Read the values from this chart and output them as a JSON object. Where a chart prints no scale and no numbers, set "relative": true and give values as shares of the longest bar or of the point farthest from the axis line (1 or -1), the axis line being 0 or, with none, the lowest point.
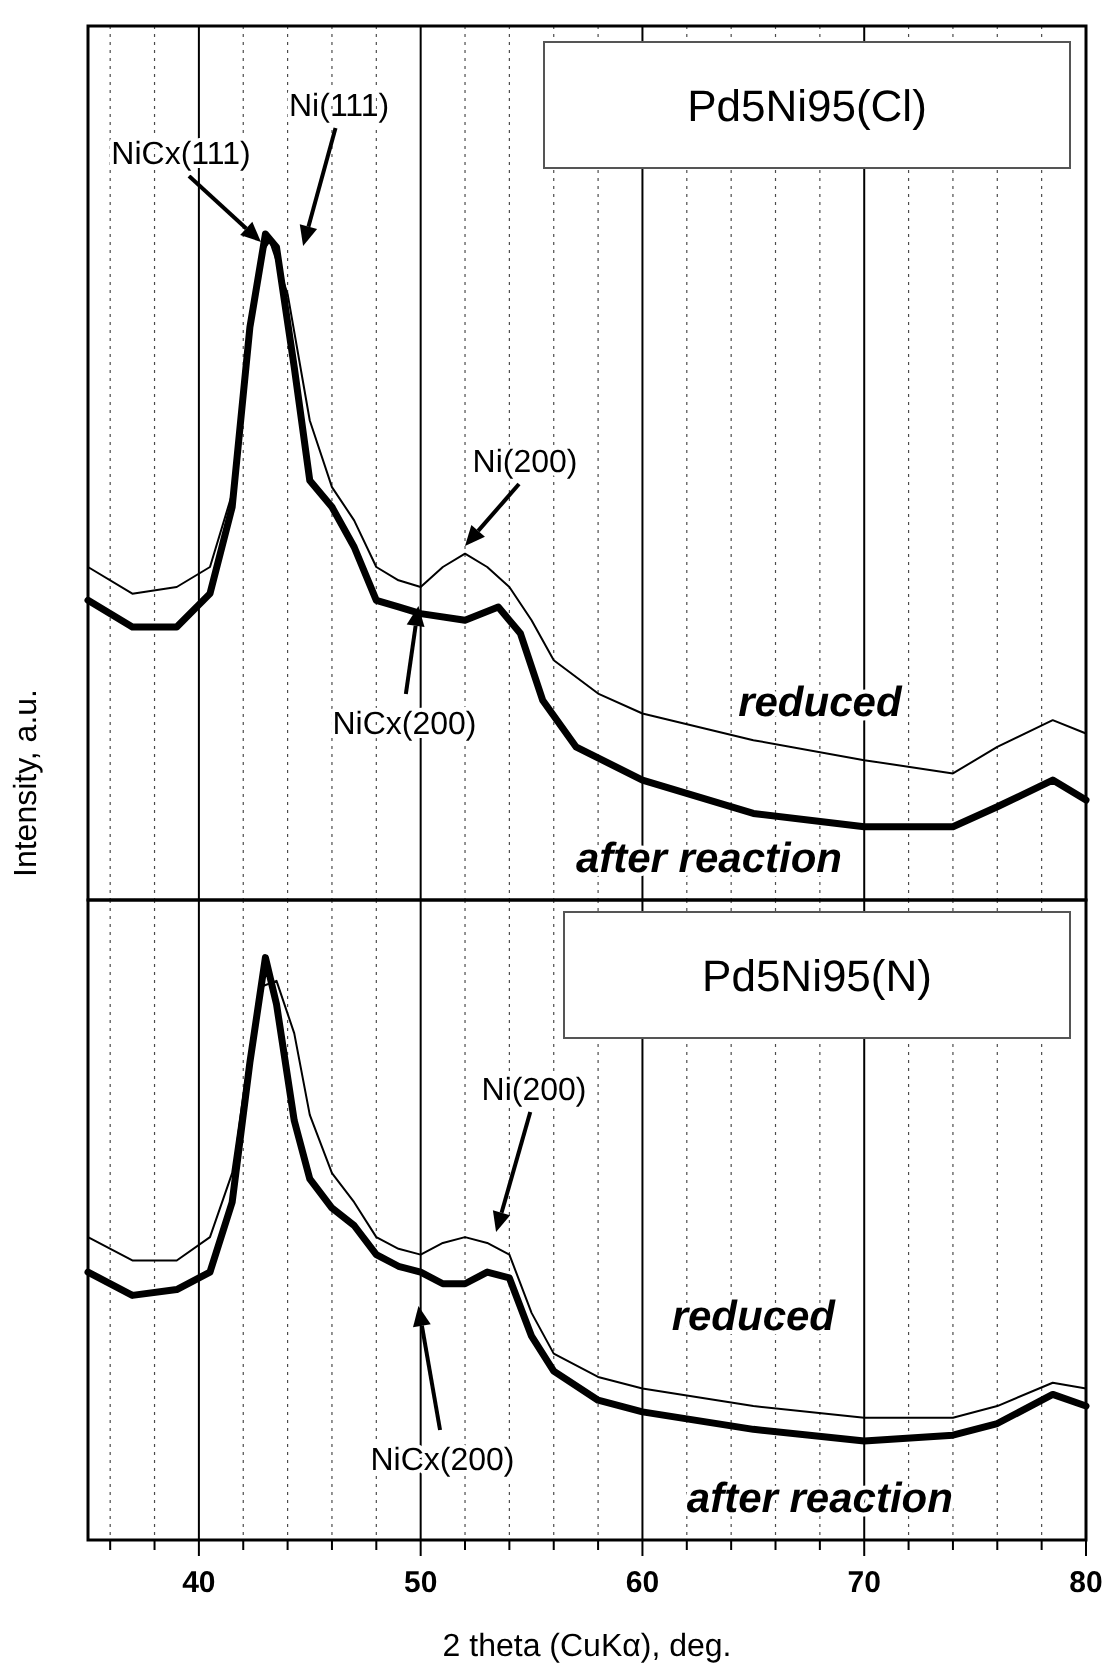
{
  "chart_data": [
    {
      "type": "line",
      "title": "Pd5Ni95(Cl)",
      "ylabel": "Intensity, a.u.",
      "relative": true,
      "grid": "x",
      "legend": false,
      "tick_labels": false,
      "marker": "none",
      "line_style": "solid",
      "xlim": [
        35,
        80
      ],
      "xticks": [
        {
          "value": 36,
          "label": null
        },
        {
          "value": 38,
          "label": null
        },
        40,
        {
          "value": 42,
          "label": null
        },
        {
          "value": 44,
          "label": null
        },
        {
          "value": 46,
          "label": null
        },
        {
          "value": 48,
          "label": null
        },
        50,
        {
          "value": 52,
          "label": null
        },
        {
          "value": 54,
          "label": null
        },
        {
          "value": 56,
          "label": null
        },
        {
          "value": 58,
          "label": null
        },
        60,
        {
          "value": 62,
          "label": null
        },
        {
          "value": 64,
          "label": null
        },
        {
          "value": 66,
          "label": null
        },
        {
          "value": 68,
          "label": null
        },
        70,
        {
          "value": 72,
          "label": null
        },
        {
          "value": 74,
          "label": null
        },
        {
          "value": 76,
          "label": null
        },
        {
          "value": 78,
          "label": null
        },
        80
      ],
      "series": [
        {
          "name": "reduced",
          "color": "#000000",
          "x": [
            35,
            37,
            39,
            40.5,
            41.5,
            42.3,
            42.8,
            43.2,
            44,
            45,
            46,
            47,
            48,
            49,
            50,
            51,
            52,
            53,
            54,
            55,
            56,
            58,
            60,
            65,
            70,
            74,
            76,
            78.5,
            80
          ],
          "values": [
            0.5,
            0.46,
            0.47,
            0.5,
            0.61,
            0.84,
            0.97,
            0.99,
            0.91,
            0.72,
            0.62,
            0.57,
            0.5,
            0.48,
            0.47,
            0.5,
            0.52,
            0.5,
            0.47,
            0.42,
            0.36,
            0.31,
            0.28,
            0.24,
            0.21,
            0.19,
            0.23,
            0.27,
            0.25
          ]
        },
        {
          "name": "after reaction",
          "color": "#000000",
          "x": [
            35,
            37,
            39,
            40.5,
            41.5,
            42.3,
            43,
            43.5,
            44.3,
            45,
            46,
            47,
            48,
            49,
            50,
            52,
            53.5,
            54.5,
            55.5,
            57,
            60,
            65,
            70,
            74,
            76,
            78.5,
            80
          ],
          "values": [
            0.45,
            0.41,
            0.41,
            0.46,
            0.59,
            0.86,
            1,
            0.98,
            0.8,
            0.63,
            0.59,
            0.53,
            0.45,
            0.44,
            0.43,
            0.42,
            0.44,
            0.4,
            0.3,
            0.23,
            0.18,
            0.13,
            0.11,
            0.11,
            0.14,
            0.18,
            0.15
          ]
        }
      ],
      "annotations": [
        "NiCx(111)",
        "Ni(111)",
        "Ni(200)",
        "NiCx(200)"
      ]
    },
    {
      "type": "line",
      "title": "Pd5Ni95(N)",
      "xlabel": "2 theta (CuKα), deg.",
      "relative": true,
      "grid": "x",
      "legend": false,
      "tick_labels": "x",
      "marker": "none",
      "line_style": "solid",
      "xlim": [
        35,
        80
      ],
      "xticks": [
        {
          "value": 36,
          "label": null
        },
        {
          "value": 38,
          "label": null
        },
        40,
        {
          "value": 42,
          "label": null
        },
        {
          "value": 44,
          "label": null
        },
        {
          "value": 46,
          "label": null
        },
        {
          "value": 48,
          "label": null
        },
        50,
        {
          "value": 52,
          "label": null
        },
        {
          "value": 54,
          "label": null
        },
        {
          "value": 56,
          "label": null
        },
        {
          "value": 58,
          "label": null
        },
        60,
        {
          "value": 62,
          "label": null
        },
        {
          "value": 64,
          "label": null
        },
        {
          "value": 66,
          "label": null
        },
        {
          "value": 68,
          "label": null
        },
        70,
        {
          "value": 72,
          "label": null
        },
        {
          "value": 74,
          "label": null
        },
        {
          "value": 76,
          "label": null
        },
        {
          "value": 78,
          "label": null
        },
        80
      ],
      "series": [
        {
          "name": "reduced",
          "color": "#000000",
          "x": [
            35,
            37,
            39,
            40.5,
            41.5,
            42.3,
            42.8,
            43.5,
            44.3,
            45,
            46,
            47,
            48,
            49,
            50,
            51,
            52,
            53,
            54,
            55,
            56,
            58,
            60,
            65,
            70,
            74,
            76,
            78.5,
            80
          ],
          "values": [
            0.52,
            0.48,
            0.48,
            0.52,
            0.63,
            0.84,
            0.95,
            0.96,
            0.87,
            0.73,
            0.63,
            0.58,
            0.52,
            0.5,
            0.49,
            0.51,
            0.52,
            0.51,
            0.49,
            0.39,
            0.32,
            0.28,
            0.26,
            0.23,
            0.21,
            0.21,
            0.23,
            0.27,
            0.26
          ]
        },
        {
          "name": "after reaction",
          "color": "#000000",
          "x": [
            35,
            37,
            39,
            40.5,
            41.5,
            42.3,
            43,
            43.5,
            44.3,
            45,
            46,
            47,
            48,
            49,
            50,
            51,
            52,
            53,
            54,
            55,
            56,
            58,
            60,
            65,
            70,
            74,
            76,
            78.5,
            80
          ],
          "values": [
            0.46,
            0.42,
            0.43,
            0.46,
            0.58,
            0.82,
            1,
            0.92,
            0.72,
            0.62,
            0.57,
            0.54,
            0.49,
            0.47,
            0.46,
            0.44,
            0.44,
            0.46,
            0.45,
            0.35,
            0.29,
            0.24,
            0.22,
            0.19,
            0.17,
            0.18,
            0.2,
            0.25,
            0.23
          ]
        }
      ],
      "annotations": [
        "Ni(200)",
        "NiCx(200)"
      ]
    }
  ]
}
